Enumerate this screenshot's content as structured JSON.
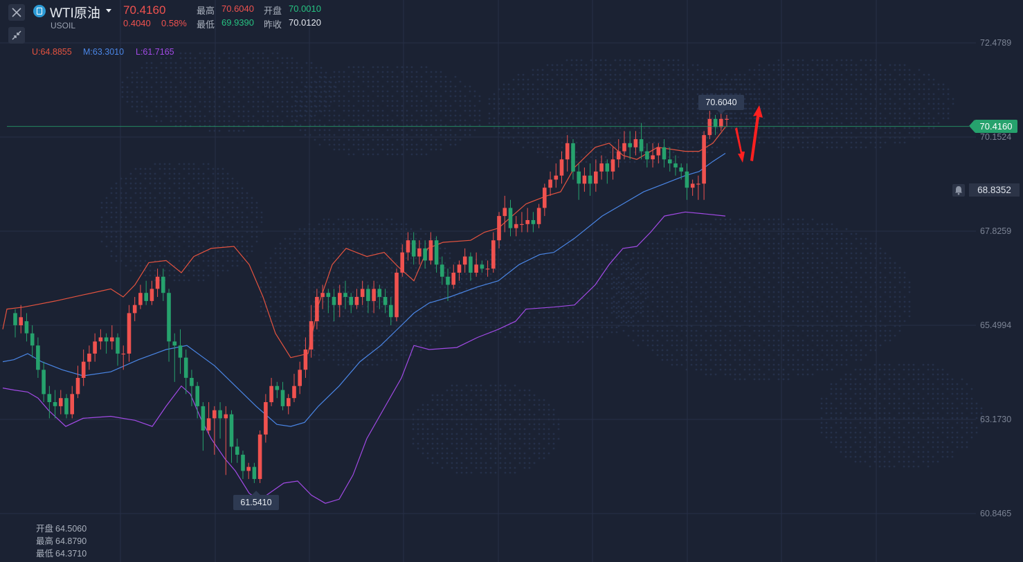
{
  "header": {
    "symbol_name": "WTI原油",
    "symbol_code": "USOIL",
    "price": "70.4160",
    "change": "0.4040",
    "change_pct": "0.58%",
    "high_label": "最高",
    "high_value": "70.6040",
    "open_label": "开盘",
    "open_value": "70.0010",
    "low_label": "最低",
    "low_value": "69.9390",
    "prev_close_label": "昨收",
    "prev_close_value": "70.0120"
  },
  "toolbar": {
    "close_icon": "close-icon",
    "collapse_icon": "collapse-arrows-icon"
  },
  "legend": {
    "upper": "U:64.8855",
    "middle": "M:63.3010",
    "lower": "L:61.7165"
  },
  "bottom_ohlc": [
    {
      "label": "开盘",
      "value": "64.5060"
    },
    {
      "label": "最高",
      "value": "64.8790"
    },
    {
      "label": "最低",
      "value": "64.3710"
    }
  ],
  "colors": {
    "up": "#f0524f",
    "down": "#26a26d",
    "upper_band": "#e5533f",
    "middle_band": "#4a86e6",
    "lower_band": "#a24ae6",
    "current_line": "#26a26d"
  },
  "current_price_tag": "70.4160",
  "alert_price_tag": "68.8352",
  "callouts": {
    "high": "70.6040",
    "low": "61.5410"
  },
  "chart_data": {
    "type": "candlestick",
    "ylim": [
      60.8465,
      72.4789
    ],
    "y_ticks": [
      "72.4789",
      "70.1524",
      "67.8259",
      "65.4994",
      "63.1730",
      "60.8465"
    ],
    "candles": [
      [
        65.8,
        65.5,
        65.9,
        65.2
      ],
      [
        65.5,
        65.7,
        66.0,
        65.3
      ],
      [
        65.6,
        65.3,
        65.8,
        65.1
      ],
      [
        65.3,
        65.0,
        65.5,
        64.7
      ],
      [
        65.0,
        64.4,
        65.2,
        64.2
      ],
      [
        64.4,
        63.8,
        64.6,
        63.6
      ],
      [
        63.8,
        63.6,
        64.0,
        63.2
      ],
      [
        63.6,
        63.5,
        63.9,
        63.2
      ],
      [
        63.5,
        63.7,
        63.9,
        63.3
      ],
      [
        63.7,
        63.3,
        63.8,
        63.2
      ],
      [
        63.3,
        63.8,
        64.0,
        63.2
      ],
      [
        63.8,
        64.2,
        64.5,
        63.7
      ],
      [
        64.2,
        64.6,
        64.9,
        64.0
      ],
      [
        64.6,
        64.8,
        65.0,
        64.4
      ],
      [
        64.8,
        65.1,
        65.3,
        64.6
      ],
      [
        65.1,
        65.2,
        65.4,
        64.9
      ],
      [
        65.2,
        65.1,
        65.3,
        64.8
      ],
      [
        65.1,
        65.2,
        65.5,
        64.9
      ],
      [
        65.2,
        64.8,
        65.3,
        64.5
      ],
      [
        64.8,
        64.8,
        65.0,
        64.4
      ],
      [
        64.8,
        65.8,
        66.0,
        64.6
      ],
      [
        65.8,
        66.0,
        66.2,
        65.6
      ],
      [
        66.0,
        66.3,
        66.5,
        65.9
      ],
      [
        66.3,
        66.1,
        66.6,
        66.0
      ],
      [
        66.1,
        66.4,
        66.6,
        66.0
      ],
      [
        66.4,
        66.7,
        66.9,
        66.2
      ],
      [
        66.7,
        66.3,
        66.9,
        66.1
      ],
      [
        66.3,
        65.1,
        66.4,
        64.6
      ],
      [
        65.1,
        65.0,
        65.3,
        64.1
      ],
      [
        65.0,
        64.7,
        65.4,
        64.3
      ],
      [
        64.7,
        64.2,
        64.9,
        63.8
      ],
      [
        64.2,
        64.0,
        64.4,
        63.5
      ],
      [
        64.0,
        63.5,
        64.1,
        63.2
      ],
      [
        63.5,
        62.9,
        63.6,
        62.4
      ],
      [
        62.9,
        63.2,
        63.6,
        62.8
      ],
      [
        63.2,
        63.4,
        63.5,
        62.3
      ],
      [
        63.4,
        63.2,
        63.6,
        62.7
      ],
      [
        63.2,
        63.3,
        63.5,
        61.8
      ],
      [
        63.3,
        62.5,
        63.4,
        62.1
      ],
      [
        62.5,
        62.3,
        62.7,
        62.1
      ],
      [
        62.3,
        61.9,
        62.4,
        61.7
      ],
      [
        61.9,
        62.0,
        62.1,
        61.7
      ],
      [
        62.0,
        61.7,
        62.1,
        61.6
      ],
      [
        61.7,
        62.8,
        62.9,
        61.6
      ],
      [
        62.8,
        63.6,
        63.8,
        62.6
      ],
      [
        63.6,
        64.0,
        64.2,
        63.5
      ],
      [
        64.0,
        63.9,
        64.1,
        63.7
      ],
      [
        63.9,
        63.5,
        64.1,
        63.4
      ],
      [
        63.5,
        63.7,
        63.8,
        63.3
      ],
      [
        63.7,
        64.0,
        64.3,
        63.6
      ],
      [
        64.0,
        64.4,
        64.6,
        63.8
      ],
      [
        64.4,
        64.9,
        65.2,
        64.2
      ],
      [
        64.9,
        65.6,
        66.0,
        64.7
      ],
      [
        65.6,
        66.2,
        66.4,
        65.4
      ],
      [
        66.2,
        66.3,
        66.5,
        65.9
      ],
      [
        66.3,
        66.2,
        66.4,
        65.8
      ],
      [
        66.2,
        66.0,
        66.4,
        65.6
      ],
      [
        66.0,
        66.3,
        66.5,
        65.7
      ],
      [
        66.3,
        66.2,
        66.6,
        65.9
      ],
      [
        66.2,
        66.0,
        66.3,
        65.8
      ],
      [
        66.0,
        66.2,
        66.4,
        65.9
      ],
      [
        66.2,
        66.4,
        66.6,
        66.0
      ],
      [
        66.4,
        66.1,
        66.5,
        65.8
      ],
      [
        66.1,
        66.4,
        66.6,
        65.8
      ],
      [
        66.4,
        66.2,
        66.5,
        65.9
      ],
      [
        66.2,
        66.0,
        66.4,
        65.8
      ],
      [
        66.0,
        65.7,
        66.2,
        65.5
      ],
      [
        65.7,
        66.8,
        66.9,
        65.6
      ],
      [
        66.8,
        67.3,
        67.5,
        66.7
      ],
      [
        67.3,
        67.6,
        67.8,
        67.1
      ],
      [
        67.6,
        67.2,
        67.8,
        67.0
      ],
      [
        67.2,
        67.4,
        67.6,
        67.0
      ],
      [
        67.4,
        67.1,
        67.6,
        66.9
      ],
      [
        67.1,
        67.6,
        67.8,
        67.0
      ],
      [
        67.6,
        67.0,
        67.7,
        66.8
      ],
      [
        67.0,
        66.7,
        67.2,
        66.5
      ],
      [
        66.7,
        66.5,
        66.9,
        66.1
      ],
      [
        66.5,
        66.8,
        67.0,
        66.4
      ],
      [
        66.8,
        67.0,
        67.1,
        66.6
      ],
      [
        67.0,
        67.2,
        67.4,
        66.8
      ],
      [
        67.2,
        66.8,
        67.3,
        66.6
      ],
      [
        66.8,
        67.0,
        67.3,
        66.7
      ],
      [
        67.0,
        66.9,
        67.1,
        66.8
      ],
      [
        66.9,
        66.9,
        67.1,
        66.7
      ],
      [
        66.9,
        67.6,
        67.8,
        66.8
      ],
      [
        67.6,
        68.2,
        68.3,
        67.4
      ],
      [
        68.2,
        68.4,
        68.7,
        67.8
      ],
      [
        68.4,
        67.9,
        68.6,
        67.7
      ],
      [
        67.9,
        68.0,
        68.2,
        67.7
      ],
      [
        68.0,
        68.0,
        68.3,
        67.8
      ],
      [
        68.0,
        68.1,
        68.4,
        67.8
      ],
      [
        68.1,
        68.0,
        68.3,
        67.8
      ],
      [
        68.0,
        68.4,
        68.5,
        67.9
      ],
      [
        68.4,
        68.9,
        69.0,
        68.2
      ],
      [
        68.9,
        69.1,
        69.3,
        68.7
      ],
      [
        69.1,
        69.2,
        69.5,
        68.9
      ],
      [
        69.2,
        69.6,
        69.8,
        69.0
      ],
      [
        69.6,
        70.0,
        70.2,
        69.3
      ],
      [
        70.0,
        69.3,
        70.1,
        69.1
      ],
      [
        69.3,
        69.0,
        69.5,
        68.6
      ],
      [
        69.0,
        69.2,
        69.4,
        68.8
      ],
      [
        69.2,
        69.0,
        69.5,
        68.7
      ],
      [
        69.0,
        69.3,
        69.6,
        68.8
      ],
      [
        69.3,
        69.5,
        69.7,
        69.1
      ],
      [
        69.5,
        69.3,
        69.6,
        69.0
      ],
      [
        69.3,
        69.6,
        69.9,
        69.1
      ],
      [
        69.6,
        69.8,
        70.1,
        69.4
      ],
      [
        69.8,
        70.0,
        70.3,
        69.6
      ],
      [
        70.0,
        69.9,
        70.3,
        69.6
      ],
      [
        69.9,
        70.1,
        70.3,
        69.7
      ],
      [
        70.1,
        69.8,
        70.5,
        69.6
      ],
      [
        69.8,
        69.6,
        70.0,
        69.4
      ],
      [
        69.6,
        69.7,
        70.0,
        69.4
      ],
      [
        69.7,
        69.9,
        70.0,
        69.5
      ],
      [
        69.9,
        69.6,
        70.1,
        69.4
      ],
      [
        69.6,
        69.5,
        69.9,
        69.3
      ],
      [
        69.5,
        69.4,
        69.7,
        69.2
      ],
      [
        69.4,
        69.3,
        69.5,
        69.1
      ],
      [
        69.3,
        68.9,
        69.5,
        68.6
      ],
      [
        68.9,
        69.0,
        69.1,
        68.7
      ],
      [
        69.0,
        69.0,
        69.2,
        68.6
      ],
      [
        69.0,
        70.2,
        70.3,
        68.6
      ],
      [
        70.2,
        70.6,
        70.8,
        70.1
      ],
      [
        70.6,
        70.4,
        70.7,
        70.2
      ],
      [
        70.4,
        70.6,
        71.1,
        70.3
      ],
      [
        70.6,
        70.6,
        70.7,
        70.4
      ]
    ],
    "upper_band": [
      [
        4,
        65.4
      ],
      [
        10,
        65.9
      ],
      [
        34,
        65.95
      ],
      [
        50,
        66.0
      ],
      [
        80,
        66.1
      ],
      [
        120,
        66.25
      ],
      [
        160,
        66.4
      ],
      [
        178,
        66.2
      ],
      [
        195,
        66.5
      ],
      [
        215,
        67.05
      ],
      [
        240,
        67.1
      ],
      [
        262,
        66.8
      ],
      [
        280,
        67.2
      ],
      [
        305,
        67.4
      ],
      [
        338,
        67.45
      ],
      [
        360,
        67.0
      ],
      [
        380,
        66.2
      ],
      [
        398,
        65.3
      ],
      [
        420,
        64.7
      ],
      [
        445,
        64.8
      ],
      [
        460,
        66.0
      ],
      [
        480,
        67.0
      ],
      [
        500,
        67.4
      ],
      [
        530,
        67.2
      ],
      [
        555,
        67.3
      ],
      [
        575,
        66.95
      ],
      [
        598,
        66.6
      ],
      [
        618,
        67.4
      ],
      [
        640,
        67.55
      ],
      [
        680,
        67.6
      ],
      [
        700,
        67.8
      ],
      [
        720,
        67.9
      ],
      [
        740,
        68.2
      ],
      [
        760,
        68.5
      ],
      [
        790,
        68.7
      ],
      [
        810,
        68.8
      ],
      [
        830,
        69.4
      ],
      [
        860,
        69.9
      ],
      [
        880,
        70.0
      ],
      [
        900,
        69.7
      ],
      [
        920,
        69.6
      ],
      [
        950,
        69.9
      ],
      [
        990,
        69.8
      ],
      [
        1010,
        69.8
      ],
      [
        1030,
        70.0
      ],
      [
        1048,
        70.4
      ]
    ],
    "middle_band": [
      [
        4,
        64.6
      ],
      [
        20,
        64.65
      ],
      [
        40,
        64.8
      ],
      [
        60,
        64.6
      ],
      [
        90,
        64.4
      ],
      [
        120,
        64.25
      ],
      [
        160,
        64.35
      ],
      [
        200,
        64.65
      ],
      [
        240,
        64.9
      ],
      [
        270,
        65.0
      ],
      [
        290,
        64.75
      ],
      [
        310,
        64.5
      ],
      [
        340,
        64.0
      ],
      [
        370,
        63.5
      ],
      [
        400,
        63.05
      ],
      [
        420,
        63.0
      ],
      [
        440,
        63.1
      ],
      [
        460,
        63.5
      ],
      [
        490,
        64.0
      ],
      [
        520,
        64.6
      ],
      [
        550,
        65.0
      ],
      [
        580,
        65.5
      ],
      [
        598,
        65.8
      ],
      [
        620,
        66.05
      ],
      [
        650,
        66.2
      ],
      [
        690,
        66.45
      ],
      [
        720,
        66.6
      ],
      [
        750,
        67.0
      ],
      [
        780,
        67.25
      ],
      [
        800,
        67.3
      ],
      [
        830,
        67.65
      ],
      [
        870,
        68.2
      ],
      [
        900,
        68.5
      ],
      [
        930,
        68.8
      ],
      [
        960,
        69.0
      ],
      [
        990,
        69.2
      ],
      [
        1010,
        69.3
      ],
      [
        1030,
        69.55
      ],
      [
        1048,
        69.75
      ]
    ],
    "lower_band": [
      [
        4,
        63.95
      ],
      [
        20,
        63.9
      ],
      [
        40,
        63.85
      ],
      [
        55,
        63.7
      ],
      [
        70,
        63.4
      ],
      [
        95,
        63.0
      ],
      [
        120,
        63.2
      ],
      [
        160,
        63.25
      ],
      [
        195,
        63.15
      ],
      [
        220,
        63.0
      ],
      [
        240,
        63.5
      ],
      [
        262,
        64.0
      ],
      [
        275,
        63.8
      ],
      [
        290,
        63.2
      ],
      [
        305,
        62.7
      ],
      [
        325,
        62.2
      ],
      [
        340,
        61.9
      ],
      [
        360,
        61.35
      ],
      [
        372,
        61.2
      ],
      [
        385,
        61.3
      ],
      [
        410,
        61.6
      ],
      [
        430,
        61.65
      ],
      [
        450,
        61.3
      ],
      [
        470,
        61.1
      ],
      [
        490,
        61.2
      ],
      [
        510,
        61.8
      ],
      [
        530,
        62.7
      ],
      [
        560,
        63.6
      ],
      [
        580,
        64.2
      ],
      [
        598,
        65.0
      ],
      [
        620,
        64.9
      ],
      [
        660,
        64.95
      ],
      [
        690,
        65.2
      ],
      [
        720,
        65.4
      ],
      [
        745,
        65.6
      ],
      [
        760,
        65.9
      ],
      [
        800,
        65.95
      ],
      [
        830,
        66.0
      ],
      [
        860,
        66.5
      ],
      [
        880,
        67.0
      ],
      [
        900,
        67.4
      ],
      [
        920,
        67.45
      ],
      [
        940,
        67.8
      ],
      [
        960,
        68.2
      ],
      [
        990,
        68.3
      ],
      [
        1020,
        68.25
      ],
      [
        1048,
        68.2
      ]
    ],
    "current_price": 70.416,
    "alert_price": 68.8352
  }
}
